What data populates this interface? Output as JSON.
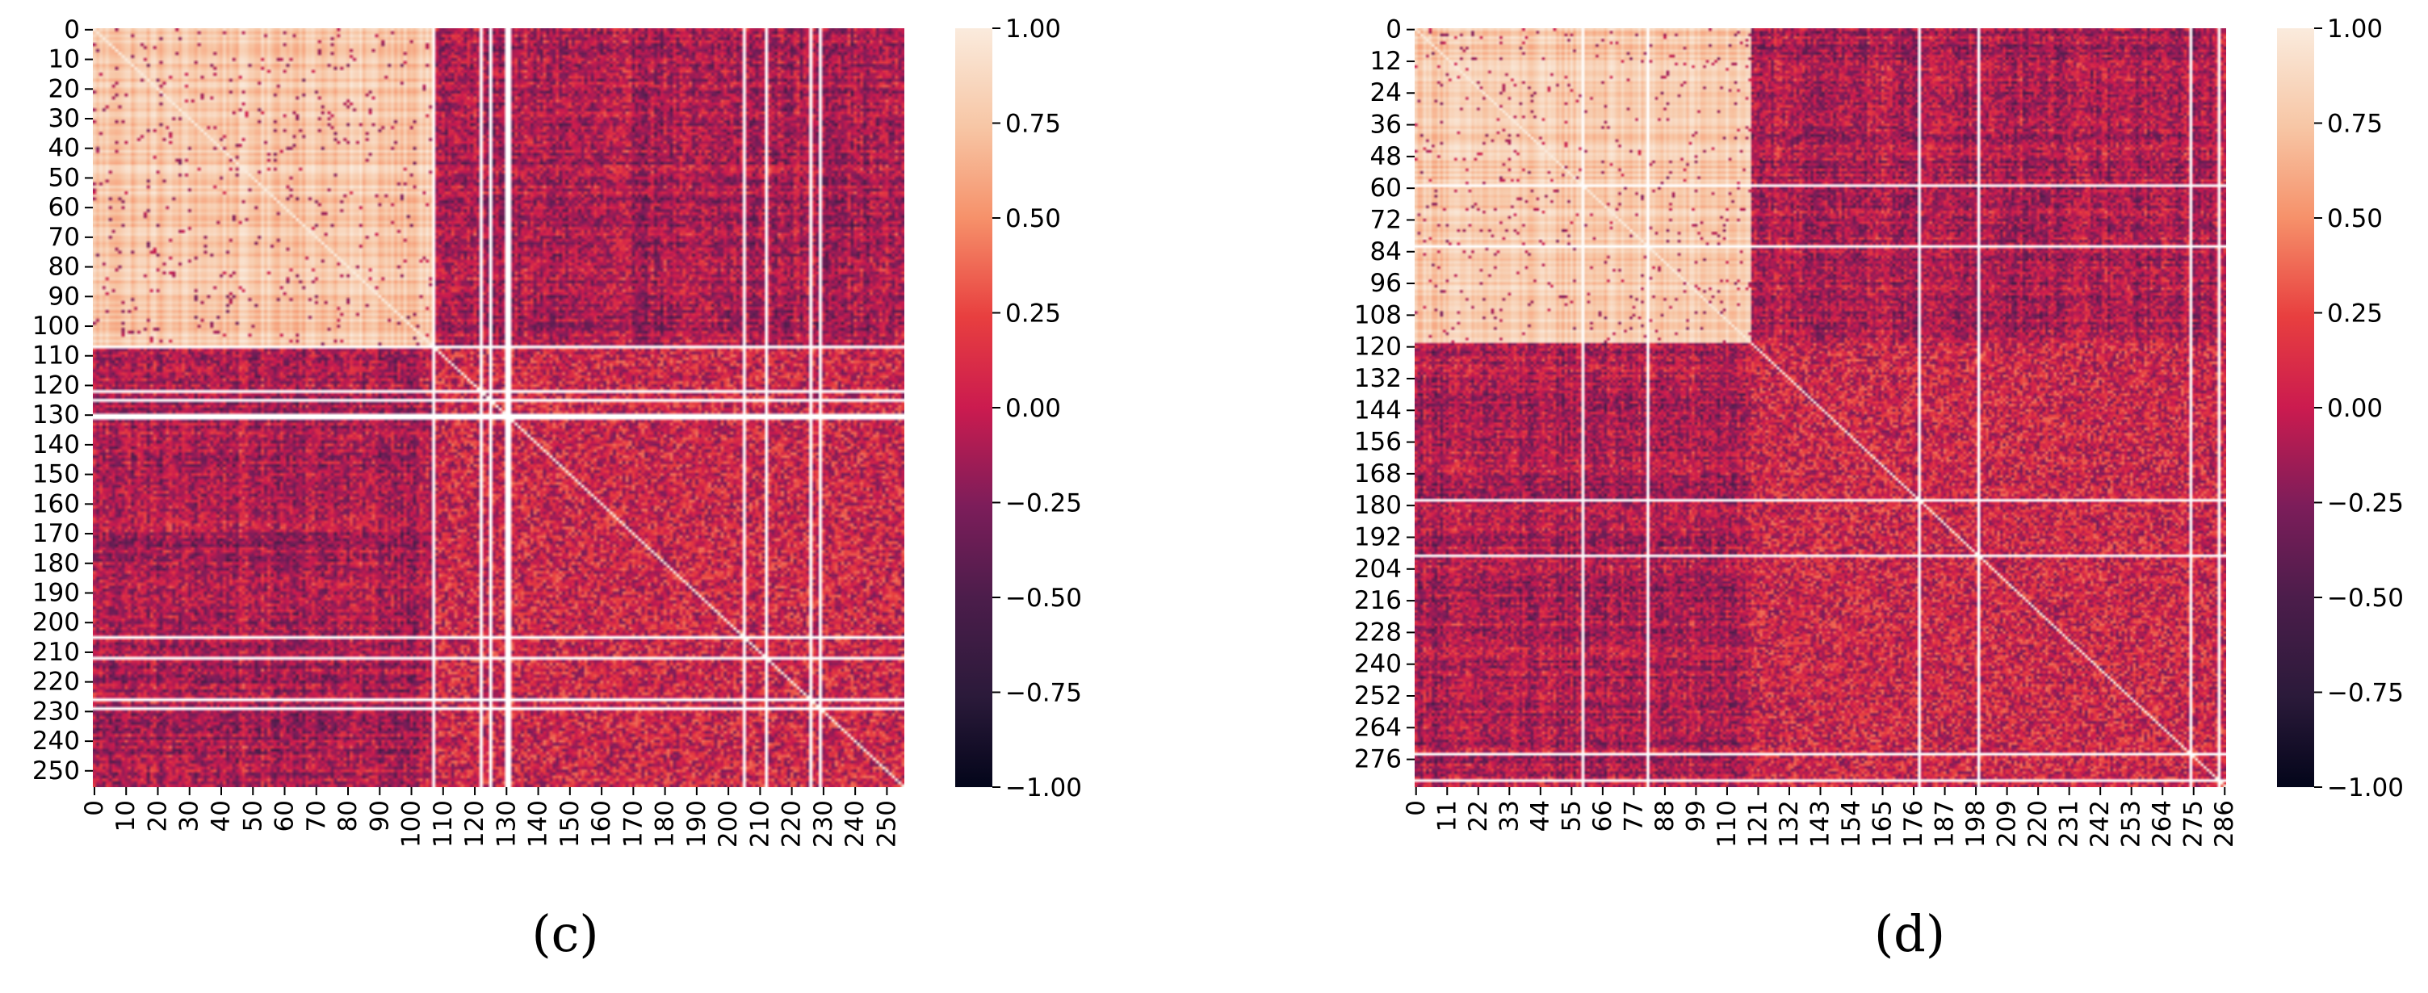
{
  "chart_data": [
    {
      "type": "heatmap",
      "panel_label": "(c)",
      "matrix_size": 256,
      "x_tick_labels": [
        "0",
        "10",
        "20",
        "30",
        "40",
        "50",
        "60",
        "70",
        "80",
        "90",
        "100",
        "110",
        "120",
        "130",
        "140",
        "150",
        "160",
        "170",
        "180",
        "190",
        "200",
        "210",
        "220",
        "230",
        "240",
        "250"
      ],
      "y_tick_labels": [
        "0",
        "10",
        "20",
        "30",
        "40",
        "50",
        "60",
        "70",
        "80",
        "90",
        "100",
        "110",
        "120",
        "130",
        "140",
        "150",
        "160",
        "170",
        "180",
        "190",
        "200",
        "210",
        "220",
        "230",
        "240",
        "250"
      ],
      "value_range": [
        -1.0,
        1.0
      ],
      "diagonal_value": 1.0,
      "high_correlation_block": [
        0,
        106
      ],
      "blank_rows_cols": [
        107,
        122,
        125,
        130,
        131,
        205,
        212,
        226,
        229
      ],
      "colorbar": {
        "ticks": [
          "1.00",
          "0.75",
          "0.50",
          "0.25",
          "0.00",
          "−0.25",
          "−0.50",
          "−0.75",
          "−1.00"
        ],
        "tick_values": [
          1.0,
          0.75,
          0.5,
          0.25,
          0.0,
          -0.25,
          -0.5,
          -0.75,
          -1.0
        ]
      }
    },
    {
      "type": "heatmap",
      "panel_label": "(d)",
      "matrix_size": 287,
      "x_tick_labels": [
        "0",
        "11",
        "22",
        "33",
        "44",
        "55",
        "66",
        "77",
        "88",
        "99",
        "110",
        "121",
        "132",
        "143",
        "154",
        "165",
        "176",
        "187",
        "198",
        "209",
        "220",
        "231",
        "242",
        "253",
        "264",
        "275",
        "286"
      ],
      "y_tick_labels": [
        "0",
        "12",
        "24",
        "36",
        "48",
        "60",
        "72",
        "84",
        "96",
        "108",
        "120",
        "132",
        "144",
        "156",
        "168",
        "180",
        "192",
        "204",
        "216",
        "228",
        "240",
        "252",
        "264",
        "276"
      ],
      "value_range": [
        -1.0,
        1.0
      ],
      "diagonal_value": 1.0,
      "high_correlation_block": [
        0,
        118
      ],
      "blank_rows_cols": [
        59,
        82,
        178,
        199,
        274,
        284
      ],
      "colorbar": {
        "ticks": [
          "1.00",
          "0.75",
          "0.50",
          "0.25",
          "0.00",
          "−0.25",
          "−0.50",
          "−0.75",
          "−1.00"
        ],
        "tick_values": [
          1.0,
          0.75,
          0.5,
          0.25,
          0.0,
          -0.25,
          -0.5,
          -0.75,
          -1.0
        ]
      }
    }
  ]
}
